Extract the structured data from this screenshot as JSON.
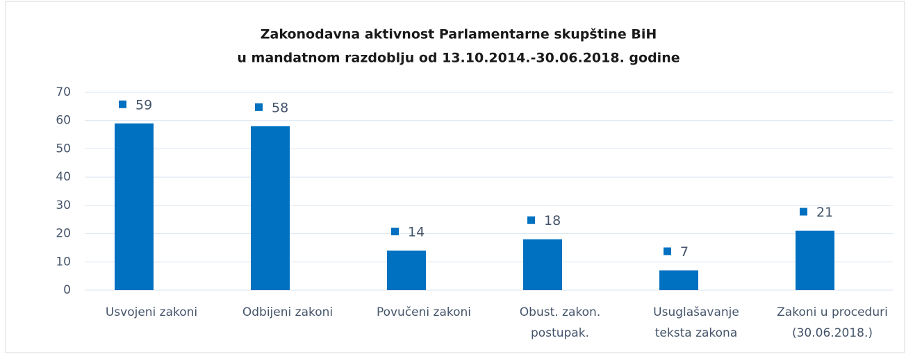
{
  "chart_data": {
    "type": "bar",
    "title": [
      "Zakonodavna aktivnost Parlamentarne skupštine BiH",
      "u mandatnom razdoblju od 13.10.2014.-30.06.2018. godine"
    ],
    "categories": [
      [
        "Usvojeni zakoni"
      ],
      [
        "Odbijeni zakoni"
      ],
      [
        "Povučeni zakoni"
      ],
      [
        "Obust. zakon.",
        "postupak."
      ],
      [
        "Usuglašavanje",
        "teksta zakona"
      ],
      [
        "Zakoni u proceduri",
        "(30.06.2018.)"
      ]
    ],
    "values": [
      59,
      58,
      14,
      18,
      7,
      21
    ],
    "color": "#0070c0",
    "ylim": [
      0,
      70
    ],
    "yticks": [
      0,
      10,
      20,
      30,
      40,
      50,
      60,
      70
    ],
    "grid": true
  }
}
